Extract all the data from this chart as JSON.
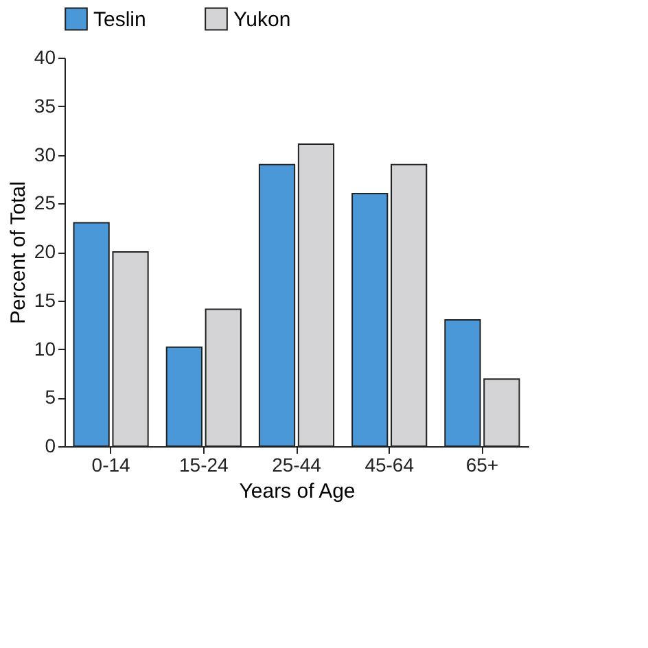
{
  "chart_data": {
    "type": "bar",
    "xlabel": "Years of Age",
    "ylabel": "Percent of Total",
    "categories": [
      "0-14",
      "15-24",
      "25-44",
      "45-64",
      "65+"
    ],
    "series": [
      {
        "name": "Teslin",
        "color": "#4a98d8",
        "values": [
          23,
          10.2,
          29,
          26,
          13
        ]
      },
      {
        "name": "Yukon",
        "color": "#d4d4d6",
        "values": [
          20,
          14.1,
          31.1,
          29,
          6.9
        ]
      }
    ],
    "ylim": [
      0,
      40
    ],
    "yticks": [
      0,
      5,
      10,
      15,
      20,
      25,
      30,
      35,
      40
    ],
    "grid": false,
    "legend": "top"
  }
}
